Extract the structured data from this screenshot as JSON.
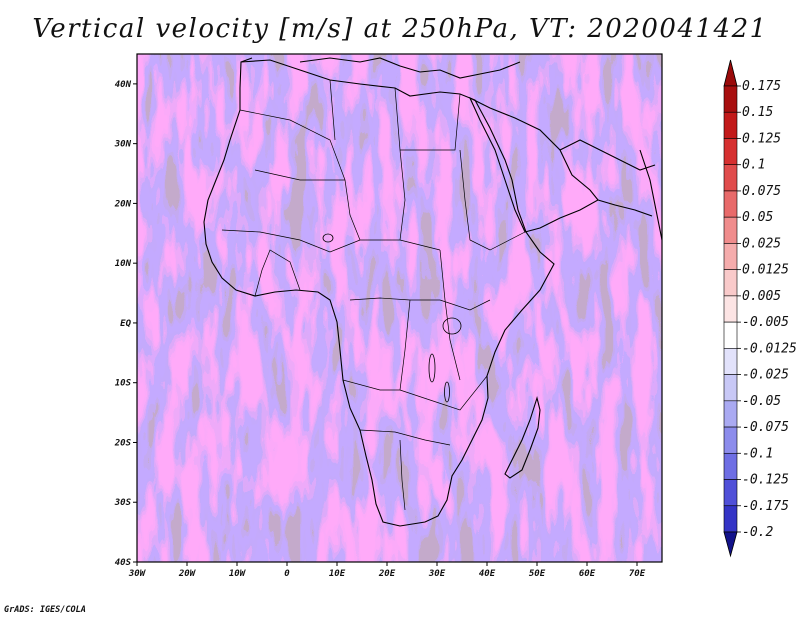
{
  "title": "Vertical velocity [m/s] at 250hPa, VT: 2020041421",
  "credit": "GrADS: IGES/COLA",
  "map": {
    "lon_range": [
      -30,
      75
    ],
    "lat_range": [
      -40,
      45
    ],
    "lat_ticks": [
      {
        "value": 40,
        "label": "40N"
      },
      {
        "value": 30,
        "label": "30N"
      },
      {
        "value": 20,
        "label": "20N"
      },
      {
        "value": 10,
        "label": "10N"
      },
      {
        "value": 0,
        "label": "EQ"
      },
      {
        "value": -10,
        "label": "10S"
      },
      {
        "value": -20,
        "label": "20S"
      },
      {
        "value": -30,
        "label": "30S"
      },
      {
        "value": -40,
        "label": "40S"
      }
    ],
    "lon_ticks": [
      {
        "value": -30,
        "label": "30W"
      },
      {
        "value": -20,
        "label": "20W"
      },
      {
        "value": -10,
        "label": "10W"
      },
      {
        "value": 0,
        "label": "0"
      },
      {
        "value": 10,
        "label": "10E"
      },
      {
        "value": 20,
        "label": "20E"
      },
      {
        "value": 30,
        "label": "30E"
      },
      {
        "value": 40,
        "label": "40E"
      },
      {
        "value": 50,
        "label": "50E"
      },
      {
        "value": 60,
        "label": "60E"
      },
      {
        "value": 70,
        "label": "70E"
      }
    ]
  },
  "colorbar": {
    "levels": [
      {
        "label": "0.175",
        "color": "#a80f0f"
      },
      {
        "label": "0.15",
        "color": "#c21a1a"
      },
      {
        "label": "0.125",
        "color": "#d63030"
      },
      {
        "label": "0.1",
        "color": "#e04c4c"
      },
      {
        "label": "0.075",
        "color": "#e86a6a"
      },
      {
        "label": "0.05",
        "color": "#f08c8c"
      },
      {
        "label": "0.025",
        "color": "#f5acac"
      },
      {
        "label": "0.0125",
        "color": "#f9caca"
      },
      {
        "label": "0.005",
        "color": "#fce4e4"
      },
      {
        "label": "-0.005",
        "color": "#ffffff"
      },
      {
        "label": "-0.0125",
        "color": "#e2e2fb"
      },
      {
        "label": "-0.025",
        "color": "#c8c8f6"
      },
      {
        "label": "-0.05",
        "color": "#aaaaf2"
      },
      {
        "label": "-0.075",
        "color": "#8c8cec"
      },
      {
        "label": "-0.1",
        "color": "#6e6ee4"
      },
      {
        "label": "-0.125",
        "color": "#5050d8"
      },
      {
        "label": "-0.175",
        "color": "#3434c6"
      },
      {
        "label": "-0.2",
        "color": "#1e1ea6"
      }
    ],
    "top_color": "#9a0a0a",
    "bottom_color": "#12128a"
  }
}
